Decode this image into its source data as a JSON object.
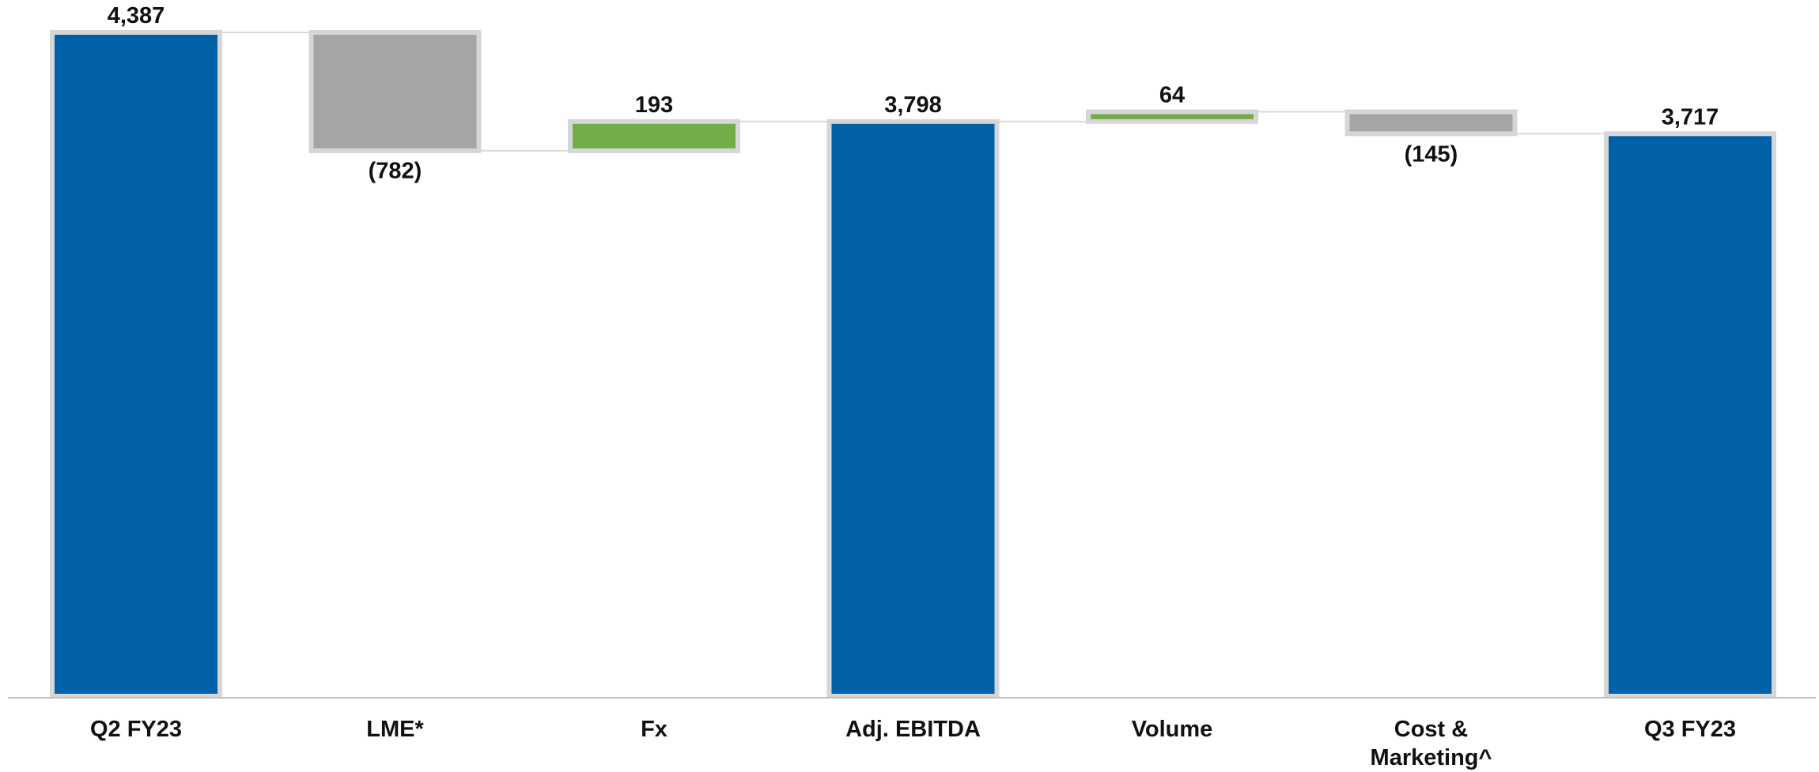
{
  "chart_data": {
    "type": "waterfall",
    "title": "",
    "xlabel": "",
    "ylabel": "",
    "ylim": [
      0,
      4387
    ],
    "grid": false,
    "legend": "none",
    "colors": {
      "total": "#0060a8",
      "decrease": "#a5a5a5",
      "increase": "#70ad47",
      "outline": "#d6d6d6",
      "connector": "#d9d9d9",
      "axis": "#bfbfbf",
      "text": "#111111"
    },
    "steps": [
      {
        "category": [
          "Q2 FY23"
        ],
        "kind": "total",
        "value": 4387,
        "label": "4,387"
      },
      {
        "category": [
          "LME*"
        ],
        "kind": "decrease",
        "value": -782,
        "label": "(782)"
      },
      {
        "category": [
          "Fx"
        ],
        "kind": "increase",
        "value": 193,
        "label": "193"
      },
      {
        "category": [
          "Adj. EBITDA"
        ],
        "kind": "total",
        "value": 3798,
        "label": "3,798"
      },
      {
        "category": [
          "Volume"
        ],
        "kind": "increase",
        "value": 64,
        "label": "64"
      },
      {
        "category": [
          "Cost &",
          "Marketing^"
        ],
        "kind": "decrease",
        "value": -145,
        "label": "(145)"
      },
      {
        "category": [
          "Q3 FY23"
        ],
        "kind": "total",
        "value": 3717,
        "label": "3,717"
      }
    ]
  }
}
